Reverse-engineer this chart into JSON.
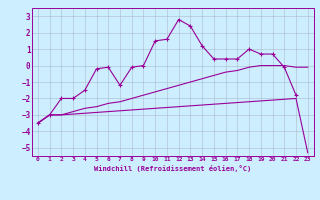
{
  "title": "",
  "xlabel": "Windchill (Refroidissement éolien,°C)",
  "background_color": "#cceeff",
  "grid_color": "#aabbaa",
  "line_color": "#990099",
  "xlim": [
    -0.5,
    23.5
  ],
  "ylim": [
    -5.5,
    3.5
  ],
  "xticks": [
    0,
    1,
    2,
    3,
    4,
    5,
    6,
    7,
    8,
    9,
    10,
    11,
    12,
    13,
    14,
    15,
    16,
    17,
    18,
    19,
    20,
    21,
    22,
    23
  ],
  "yticks": [
    -5,
    -4,
    -3,
    -2,
    -1,
    0,
    1,
    2,
    3
  ],
  "series1_x": [
    0,
    1,
    2,
    3,
    4,
    5,
    6,
    7,
    8,
    9,
    10,
    11,
    12,
    13,
    14,
    15,
    16,
    17,
    18,
    19,
    20,
    21,
    22
  ],
  "series1_y": [
    -3.5,
    -3.0,
    -2.0,
    -2.0,
    -1.5,
    -0.2,
    -0.1,
    -1.2,
    -0.1,
    0.0,
    1.5,
    1.6,
    2.8,
    2.4,
    1.2,
    0.4,
    0.4,
    0.4,
    1.0,
    0.7,
    0.7,
    -0.1,
    -1.8
  ],
  "series2_x": [
    0,
    1,
    2,
    22,
    23
  ],
  "series2_y": [
    -3.5,
    -3.0,
    -3.0,
    -2.0,
    -5.3
  ],
  "series3_x": [
    0,
    1,
    2,
    3,
    4,
    5,
    6,
    7,
    8,
    9,
    10,
    11,
    12,
    13,
    14,
    15,
    16,
    17,
    18,
    19,
    20,
    21,
    22,
    23
  ],
  "series3_y": [
    -3.5,
    -3.0,
    -3.0,
    -2.8,
    -2.6,
    -2.5,
    -2.3,
    -2.2,
    -2.0,
    -1.8,
    -1.6,
    -1.4,
    -1.2,
    -1.0,
    -0.8,
    -0.6,
    -0.4,
    -0.3,
    -0.1,
    0.0,
    0.0,
    0.0,
    -0.1,
    -0.1
  ]
}
